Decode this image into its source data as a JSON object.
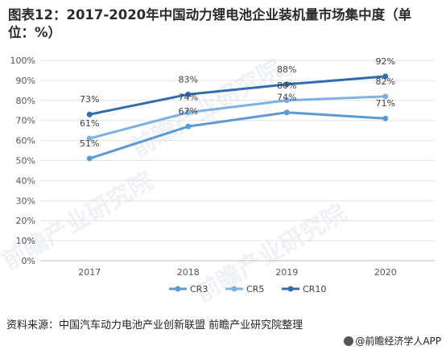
{
  "title": "图表12：2017-2020年中国动力锂电池企业装机量市场集中度（单位：%）",
  "source": "资料来源：中国汽车动力电池产业创新联盟 前瞻产业研究院整理",
  "brand": "@前瞻经济学人APP",
  "watermark": "前瞻产业研究院",
  "chart_data": {
    "type": "line",
    "categories": [
      "2017",
      "2018",
      "2019",
      "2020"
    ],
    "ylim": [
      0,
      100
    ],
    "yticks": [
      0,
      10,
      20,
      30,
      40,
      50,
      60,
      70,
      80,
      90,
      100
    ],
    "ytick_labels": [
      "0%",
      "10%",
      "20%",
      "30%",
      "40%",
      "50%",
      "60%",
      "70%",
      "80%",
      "90%",
      "100%"
    ],
    "grid": true,
    "legend_position": "bottom",
    "series": [
      {
        "name": "CR3",
        "values": [
          51,
          67,
          74,
          71
        ],
        "labels": [
          "51%",
          "67%",
          "74%",
          "71%"
        ],
        "color": "#5b9bd5"
      },
      {
        "name": "CR5",
        "values": [
          61,
          74,
          80,
          82
        ],
        "labels": [
          "61%",
          "74%",
          "80%",
          "82%"
        ],
        "color": "#7db1e6"
      },
      {
        "name": "CR10",
        "values": [
          73,
          83,
          88,
          92
        ],
        "labels": [
          "73%",
          "83%",
          "88%",
          "92%"
        ],
        "color": "#2e6db4"
      }
    ]
  }
}
